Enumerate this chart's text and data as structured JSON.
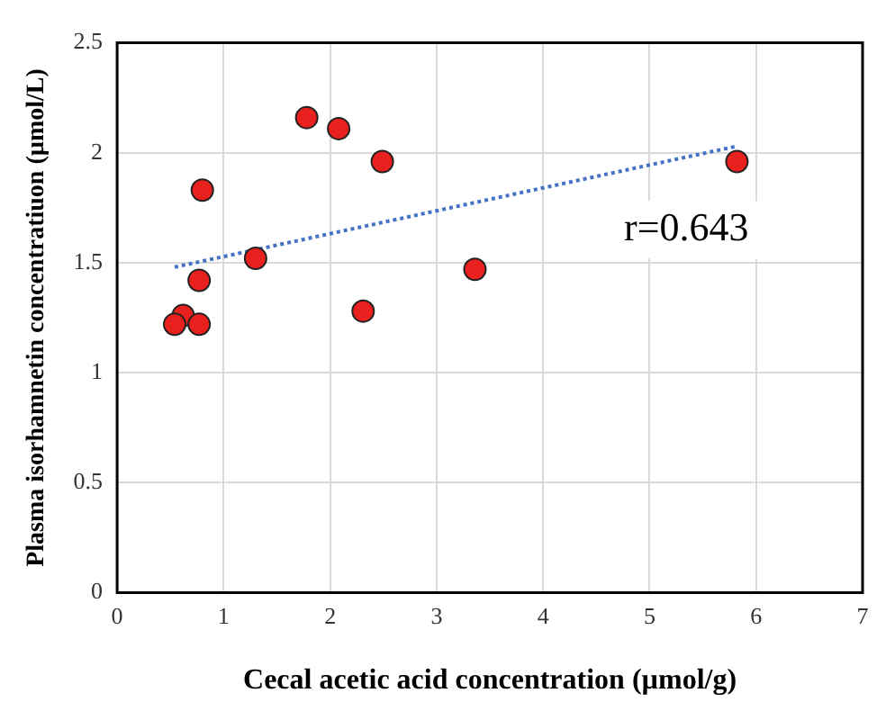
{
  "chart_data": {
    "type": "scatter",
    "xlabel": "Cecal acetic acid concentration (µmol/g)",
    "ylabel": "Plasma isorhamnetin concentratiuon (µmol/L)",
    "xlim": [
      0,
      7
    ],
    "xticks": [
      0,
      1,
      2,
      3,
      4,
      5,
      6,
      7
    ],
    "ylim": [
      0,
      2.5
    ],
    "yticks": [
      0,
      0.5,
      1,
      1.5,
      2,
      2.5
    ],
    "grid": true,
    "legend": false,
    "marker": "circle",
    "annotations": [
      "r=0.643"
    ],
    "series": [
      {
        "color": "#e8201e",
        "x": [
          1.78,
          2.08,
          2.49,
          5.82,
          0.8,
          1.3,
          3.36,
          0.77,
          2.31,
          0.62,
          0.54,
          0.77
        ],
        "values": [
          2.16,
          2.11,
          1.96,
          1.96,
          1.83,
          1.52,
          1.47,
          1.42,
          1.28,
          1.26,
          1.22,
          1.22
        ]
      },
      {
        "type": "line",
        "color": "#4472c4",
        "line_style": "dotted",
        "marker": "none",
        "x": [
          0.54,
          5.82
        ],
        "values": [
          1.48,
          2.03
        ]
      }
    ]
  }
}
